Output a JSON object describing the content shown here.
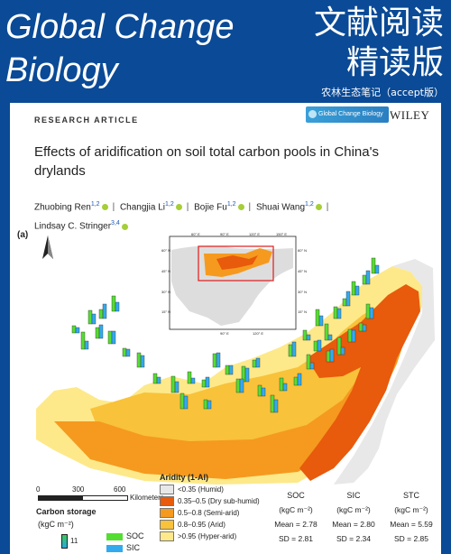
{
  "banner": {
    "journal_line1": "Global Change",
    "journal_line2": "Biology",
    "cn_line1": "文献阅读",
    "cn_line2": "精读版",
    "cn_note": "农林生态笔记（accept版）",
    "bg_color": "#0a4a96"
  },
  "paper": {
    "label": "RESEARCH ARTICLE",
    "badge_journal": "Global Change Biology",
    "publisher": "WILEY",
    "title": "Effects of aridification on soil total carbon pools in China's drylands",
    "authors": [
      {
        "name": "Zhuobing Ren",
        "aff": "1,2"
      },
      {
        "name": "Changjia Li",
        "aff": "1,2"
      },
      {
        "name": "Bojie Fu",
        "aff": "1,2"
      },
      {
        "name": "Shuai Wang",
        "aff": "1,2"
      },
      {
        "name": "Lindsay C. Stringer",
        "aff": "3,4"
      }
    ],
    "panel": "(a)"
  },
  "map": {
    "north": "N",
    "inset_ticks_top": [
      "60° E",
      "90° E",
      "120° E",
      "150° E"
    ],
    "inset_ticks_left": [
      "60° N",
      "45° N",
      "30° N",
      "15° N",
      "0°"
    ],
    "inset_ticks_right": [
      "60° N",
      "45° N",
      "30° N",
      "15° N"
    ],
    "inset_ticks_bottom": [
      "90° E",
      "120° E"
    ],
    "scale_ticks": [
      "0",
      "300",
      "600"
    ],
    "scale_unit": "Kilometers"
  },
  "legend": {
    "storage_title": "Carbon storage",
    "storage_unit": "(kgC m⁻²)",
    "storage_value": "11",
    "soc_label": "SOC",
    "sic_label": "SIC",
    "soc_color": "#55dd33",
    "sic_color": "#33aaee",
    "aridity_title": "Aridity (1-AI)",
    "aridity": [
      {
        "label": "<0.35 (Humid)",
        "color": "#e8e8e8"
      },
      {
        "label": "0.35–0.5 (Dry sub-humid)",
        "color": "#e85a0c"
      },
      {
        "label": "0.5–0.8 (Semi-arid)",
        "color": "#f59a1f"
      },
      {
        "label": "0.8–0.95 (Arid)",
        "color": "#f8c23a"
      },
      {
        "label": ">0.95 (Hyper-arid)",
        "color": "#fde98a"
      }
    ]
  },
  "stats": {
    "columns": [
      {
        "name": "SOC",
        "unit": "(kgC m⁻²)",
        "mean": "Mean = 2.78",
        "sd": "SD = 2.81"
      },
      {
        "name": "SIC",
        "unit": "(kgC m⁻²)",
        "mean": "Mean = 2.80",
        "sd": "SD = 2.34"
      },
      {
        "name": "STC",
        "unit": "(kgC m⁻²)",
        "mean": "Mean = 5.59",
        "sd": "SD = 2.85"
      }
    ]
  }
}
